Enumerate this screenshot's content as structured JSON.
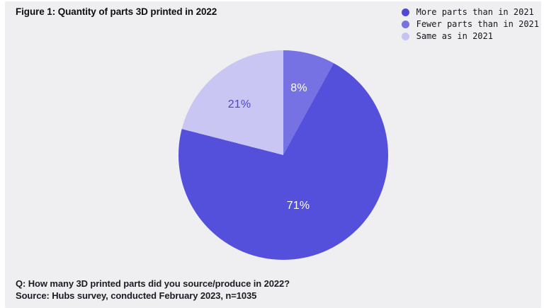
{
  "page": {
    "background_color": "#efeff1",
    "title": "Figure 1: Quantity of parts 3D printed in 2022"
  },
  "legend": {
    "position": "top-right",
    "items": [
      {
        "label": "More parts than in 2021",
        "color": "#4e49d4"
      },
      {
        "label": "Fewer parts than in 2021",
        "color": "#7672e4"
      },
      {
        "label": "Same as in 2021",
        "color": "#c6c3f1"
      }
    ]
  },
  "chart_data": {
    "type": "pie",
    "title": "Figure 1: Quantity of parts 3D printed in 2022",
    "start_angle": "top",
    "direction": "clockwise",
    "legend_position": "top-right",
    "slices": [
      {
        "label": "Fewer parts than in 2021",
        "value": 8,
        "pct_label": "8%",
        "color": "#7672e4",
        "text_color": "#ffffff",
        "start_deg": 0,
        "end_deg": 28.8
      },
      {
        "label": "More parts than in 2021",
        "value": 71,
        "pct_label": "71%",
        "color": "#5450dc",
        "text_color": "#ffffff",
        "start_deg": 28.8,
        "end_deg": 284.4
      },
      {
        "label": "Same as in 2021",
        "value": 21,
        "pct_label": "21%",
        "color": "#c9c6f4",
        "text_color": "#4b46cc",
        "start_deg": 284.4,
        "end_deg": 360
      }
    ]
  },
  "footer": {
    "question": "Q: How many 3D printed parts did you source/produce in 2022?",
    "source": "Source: Hubs survey, conducted February 2023, n=1035"
  }
}
